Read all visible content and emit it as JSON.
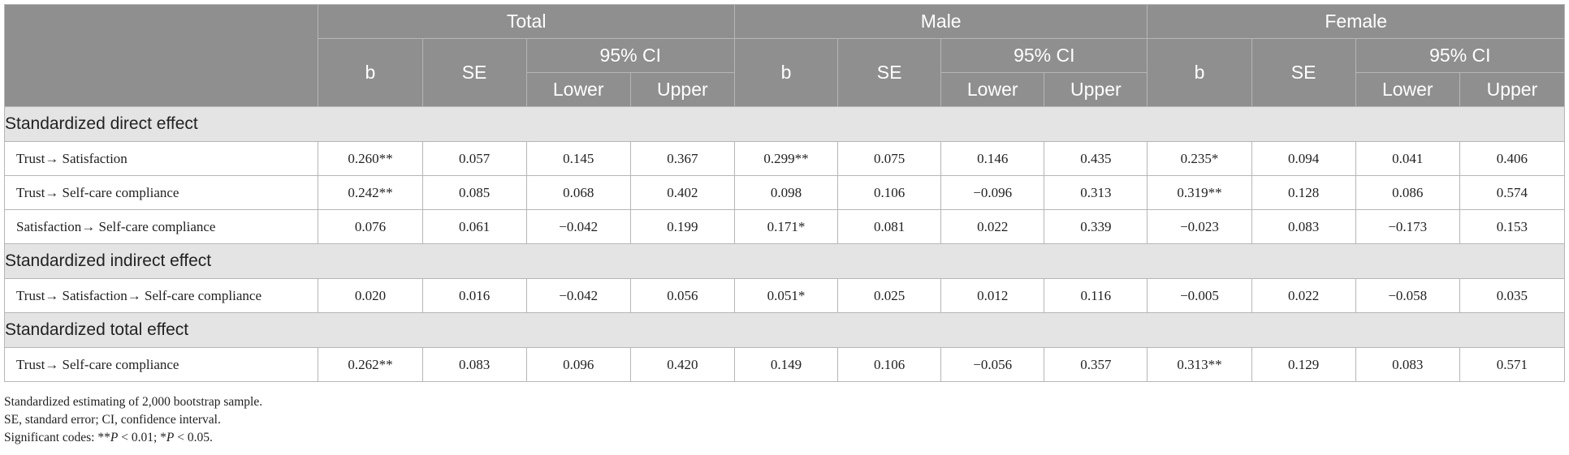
{
  "header": {
    "groups": [
      "Total",
      "Male",
      "Female"
    ],
    "b": "b",
    "se": "SE",
    "ci": "95% CI",
    "lower": "Lower",
    "upper": "Upper"
  },
  "sections": [
    {
      "title": "Standardized direct effect",
      "rows": [
        {
          "label": "Trust→ Satisfaction",
          "cells": [
            "0.260**",
            "0.057",
            "0.145",
            "0.367",
            "0.299**",
            "0.075",
            "0.146",
            "0.435",
            "0.235*",
            "0.094",
            "0.041",
            "0.406"
          ]
        },
        {
          "label": "Trust→ Self-care compliance",
          "cells": [
            "0.242**",
            "0.085",
            "0.068",
            "0.402",
            "0.098",
            "0.106",
            "−0.096",
            "0.313",
            "0.319**",
            "0.128",
            "0.086",
            "0.574"
          ]
        },
        {
          "label": "Satisfaction→ Self-care compliance",
          "cells": [
            "0.076",
            "0.061",
            "−0.042",
            "0.199",
            "0.171*",
            "0.081",
            "0.022",
            "0.339",
            "−0.023",
            "0.083",
            "−0.173",
            "0.153"
          ]
        }
      ]
    },
    {
      "title": "Standardized indirect effect",
      "rows": [
        {
          "label": "Trust→ Satisfaction→ Self-care compliance",
          "cells": [
            "0.020",
            "0.016",
            "−0.042",
            "0.056",
            "0.051*",
            "0.025",
            "0.012",
            "0.116",
            "−0.005",
            "0.022",
            "−0.058",
            "0.035"
          ]
        }
      ]
    },
    {
      "title": "Standardized total effect",
      "rows": [
        {
          "label": "Trust→ Self-care compliance",
          "cells": [
            "0.262**",
            "0.083",
            "0.096",
            "0.420",
            "0.149",
            "0.106",
            "−0.056",
            "0.357",
            "0.313**",
            "0.129",
            "0.083",
            "0.571"
          ]
        }
      ]
    }
  ],
  "footnotes": {
    "line1": "Standardized estimating of 2,000 bootstrap sample.",
    "line2": "SE, standard error; CI, confidence interval.",
    "line3_prefix": "Significant codes: **",
    "line3_p1": "P",
    "line3_mid": " < 0.01; *",
    "line3_p2": "P",
    "line3_suffix": " < 0.05."
  }
}
